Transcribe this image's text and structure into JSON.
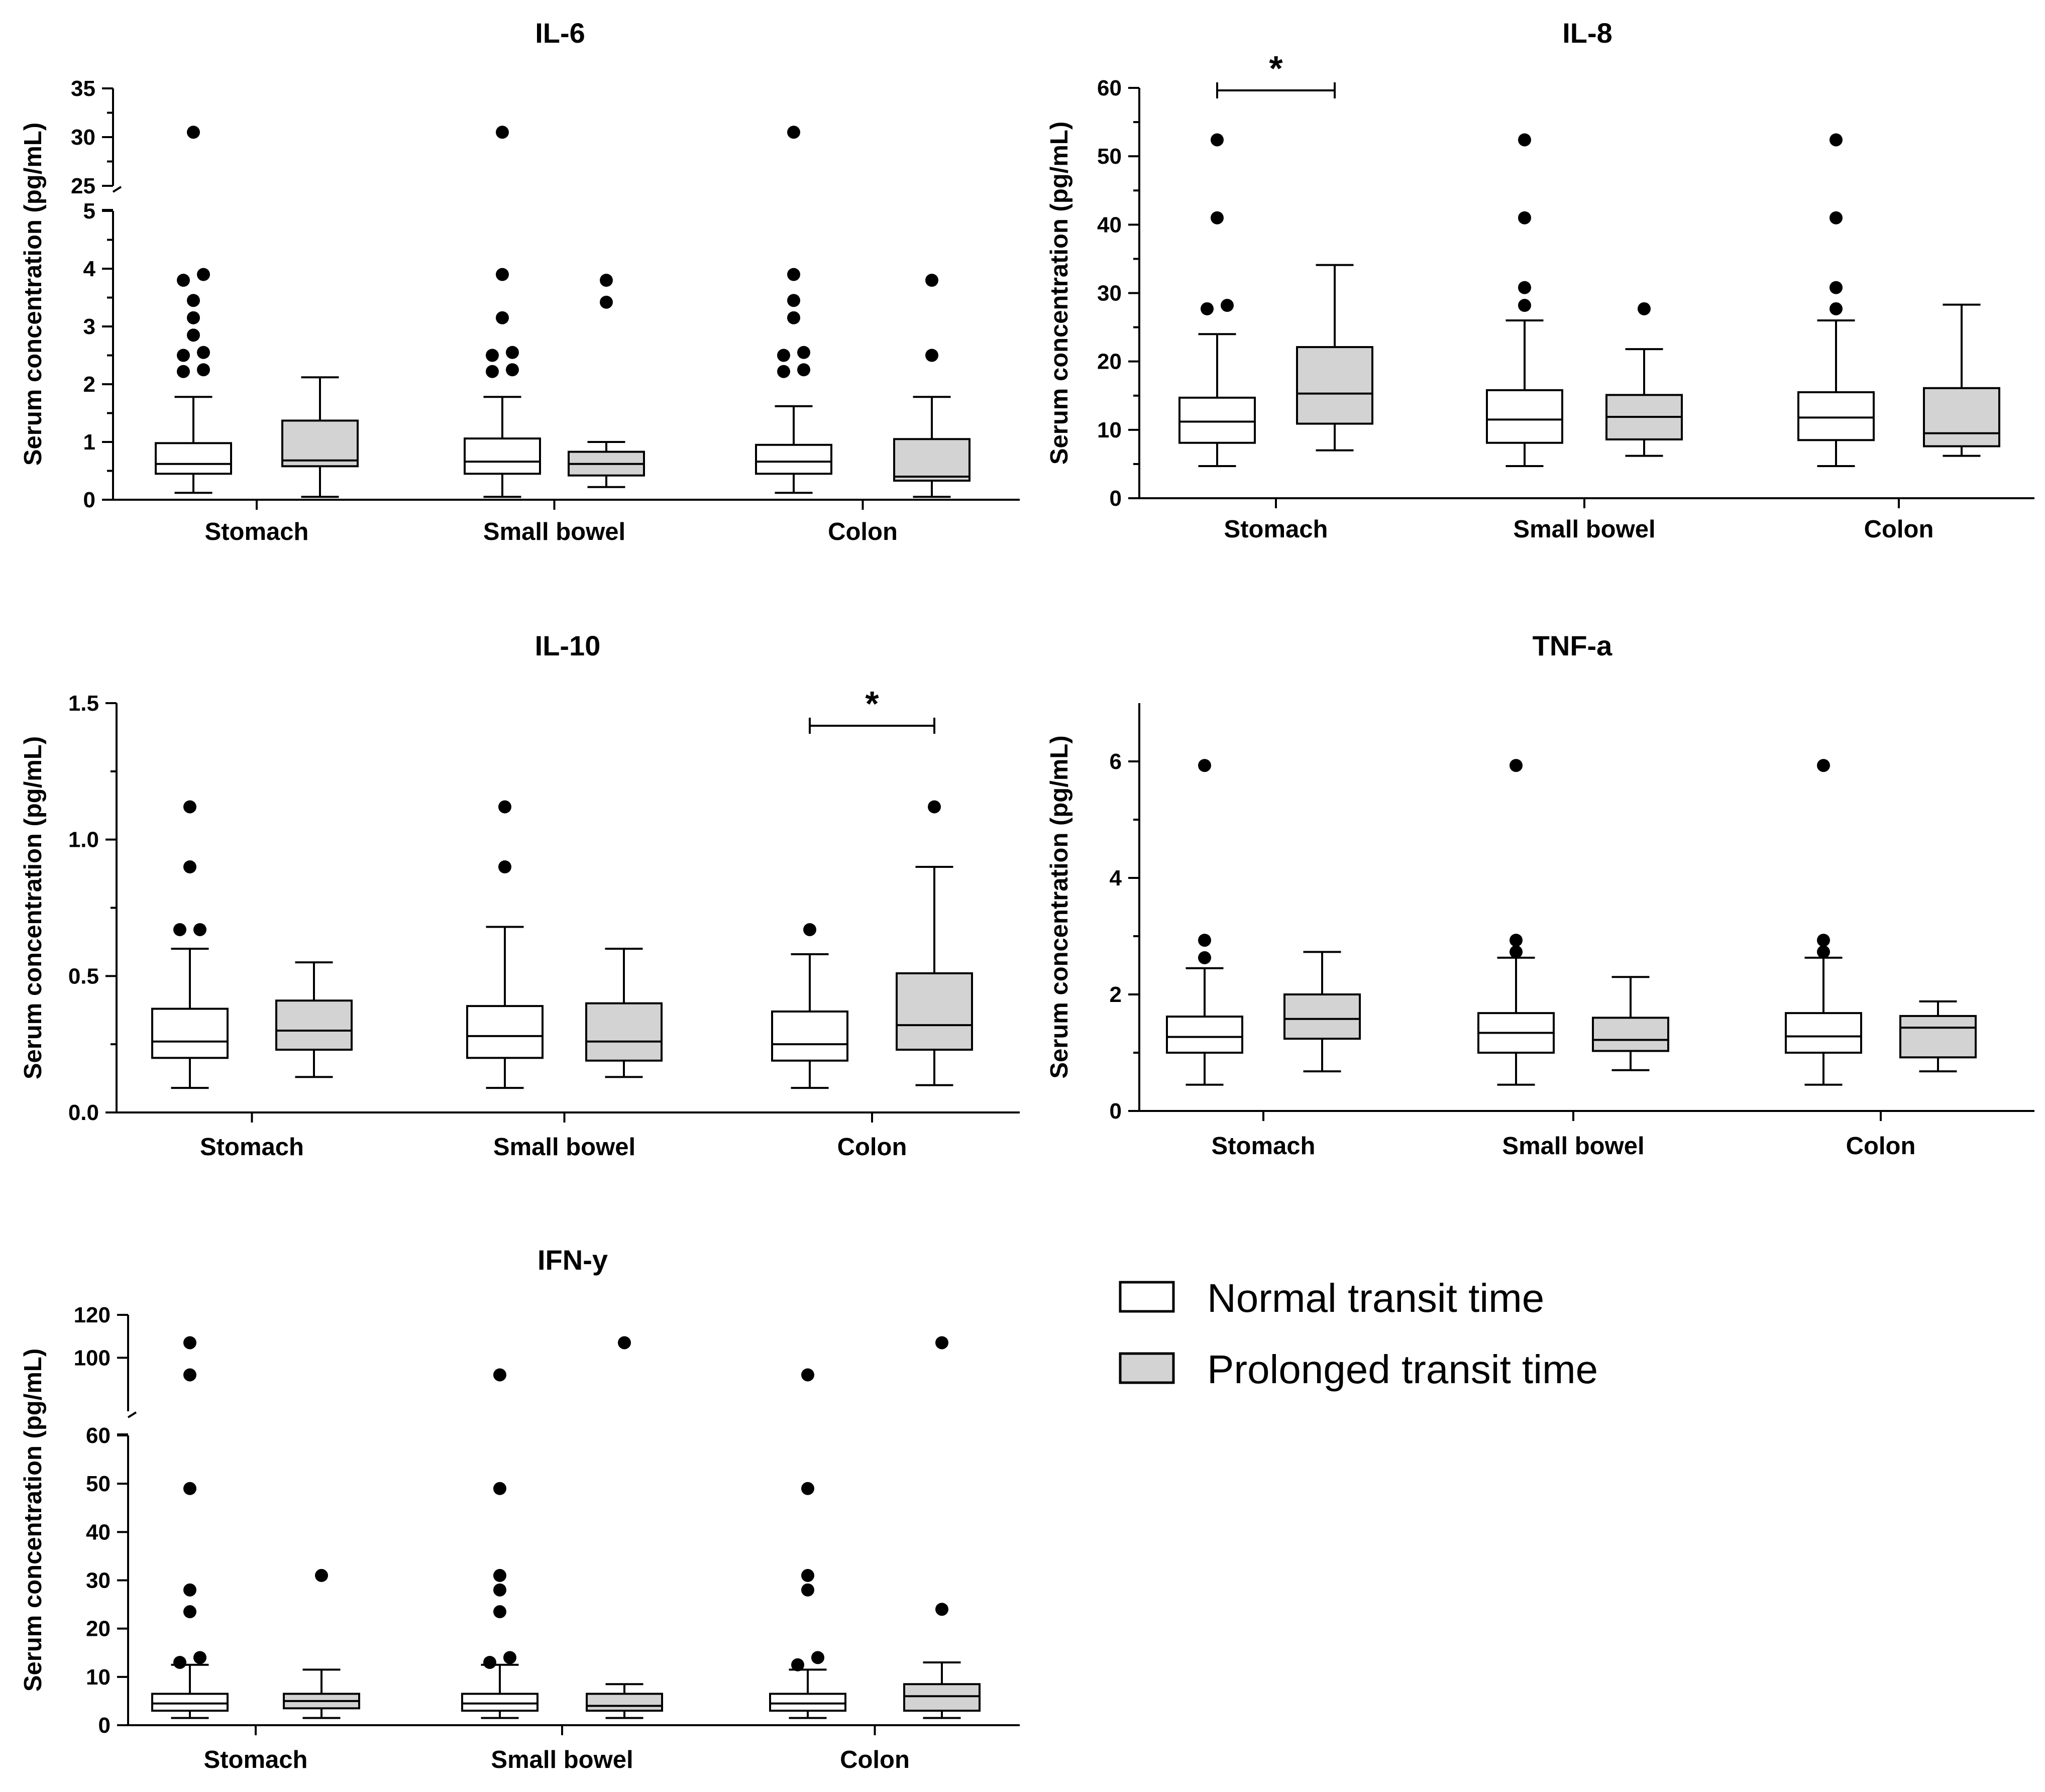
{
  "colors": {
    "normal_fill": "#ffffff",
    "prolonged_fill": "#d3d3d3",
    "stroke": "#000000",
    "outlier": "#000000"
  },
  "legend": {
    "items": [
      {
        "label": "Normal transit time",
        "fill": "#ffffff"
      },
      {
        "label": "Prolonged transit time",
        "fill": "#d3d3d3"
      }
    ]
  },
  "chart_data": [
    {
      "type": "box",
      "title": "IL-6",
      "ylabel": "Serum concentration (pg/mL)",
      "categories": [
        "Stomach",
        "Small bowel",
        "Colon"
      ],
      "axis_break": {
        "lower": [
          0,
          5
        ],
        "upper": [
          25,
          35
        ]
      },
      "yticks_lower": [
        "0",
        "1",
        "2",
        "3",
        "4",
        "5"
      ],
      "yticks_upper": [
        "25",
        "30",
        "35"
      ],
      "series": [
        {
          "name": "Normal transit time",
          "boxes": [
            {
              "min": 0.12,
              "q1": 0.45,
              "median": 0.62,
              "q3": 0.98,
              "max": 1.78,
              "outliers": [
                2.22,
                2.25,
                2.5,
                2.55,
                2.85,
                3.15,
                3.45,
                3.8,
                3.9,
                30.5
              ]
            },
            {
              "min": 0.05,
              "q1": 0.45,
              "median": 0.66,
              "q3": 1.06,
              "max": 1.78,
              "outliers": [
                2.22,
                2.25,
                2.5,
                2.55,
                3.15,
                3.9,
                30.5
              ]
            },
            {
              "min": 0.12,
              "q1": 0.45,
              "median": 0.66,
              "q3": 0.95,
              "max": 1.62,
              "outliers": [
                2.22,
                2.25,
                2.5,
                2.55,
                3.15,
                3.45,
                3.9,
                30.5
              ]
            }
          ]
        },
        {
          "name": "Prolonged transit time",
          "boxes": [
            {
              "min": 0.05,
              "q1": 0.58,
              "median": 0.68,
              "q3": 1.37,
              "max": 2.12,
              "outliers": []
            },
            {
              "min": 0.22,
              "q1": 0.42,
              "median": 0.62,
              "q3": 0.83,
              "max": 1.0,
              "outliers": [
                3.42,
                3.8
              ]
            },
            {
              "min": 0.05,
              "q1": 0.33,
              "median": 0.4,
              "q3": 1.05,
              "max": 1.78,
              "outliers": [
                2.5,
                3.8
              ]
            }
          ]
        }
      ],
      "significance": []
    },
    {
      "type": "box",
      "title": "IL-8",
      "ylabel": "Serum concentration (pg/mL)",
      "categories": [
        "Stomach",
        "Small bowel",
        "Colon"
      ],
      "ylim": [
        0,
        60
      ],
      "yticks": [
        "0",
        "10",
        "20",
        "30",
        "40",
        "50",
        "60"
      ],
      "series": [
        {
          "name": "Normal transit time",
          "boxes": [
            {
              "min": 4.7,
              "q1": 8.1,
              "median": 11.2,
              "q3": 14.7,
              "max": 24.0,
              "outliers": [
                27.7,
                28.2,
                41.0,
                52.4
              ]
            },
            {
              "min": 4.7,
              "q1": 8.1,
              "median": 11.5,
              "q3": 15.8,
              "max": 26.0,
              "outliers": [
                28.2,
                30.8,
                41.0,
                52.4
              ]
            },
            {
              "min": 4.7,
              "q1": 8.5,
              "median": 11.8,
              "q3": 15.5,
              "max": 26.0,
              "outliers": [
                27.7,
                30.8,
                41.0,
                52.4
              ]
            }
          ]
        },
        {
          "name": "Prolonged transit time",
          "boxes": [
            {
              "min": 7.0,
              "q1": 10.9,
              "median": 15.3,
              "q3": 22.1,
              "max": 34.1,
              "outliers": []
            },
            {
              "min": 6.2,
              "q1": 8.6,
              "median": 11.9,
              "q3": 15.1,
              "max": 21.8,
              "outliers": [
                27.7
              ]
            },
            {
              "min": 6.2,
              "q1": 7.6,
              "median": 9.5,
              "q3": 16.1,
              "max": 28.3,
              "outliers": []
            }
          ]
        }
      ],
      "significance": [
        {
          "category": "Stomach",
          "label": "*"
        }
      ]
    },
    {
      "type": "box",
      "title": "IL-10",
      "ylabel": "Serum concentration (pg/mL)",
      "categories": [
        "Stomach",
        "Small bowel",
        "Colon"
      ],
      "ylim": [
        0,
        1.5
      ],
      "yticks": [
        "0.0",
        "0.5",
        "1.0",
        "1.5"
      ],
      "series": [
        {
          "name": "Normal transit time",
          "boxes": [
            {
              "min": 0.09,
              "q1": 0.2,
              "median": 0.26,
              "q3": 0.38,
              "max": 0.6,
              "outliers": [
                0.67,
                0.67,
                0.9,
                1.12
              ]
            },
            {
              "min": 0.09,
              "q1": 0.2,
              "median": 0.28,
              "q3": 0.39,
              "max": 0.68,
              "outliers": [
                0.9,
                1.12
              ]
            },
            {
              "min": 0.09,
              "q1": 0.19,
              "median": 0.25,
              "q3": 0.37,
              "max": 0.58,
              "outliers": [
                0.67
              ]
            }
          ]
        },
        {
          "name": "Prolonged transit time",
          "boxes": [
            {
              "min": 0.13,
              "q1": 0.23,
              "median": 0.3,
              "q3": 0.41,
              "max": 0.55,
              "outliers": []
            },
            {
              "min": 0.13,
              "q1": 0.19,
              "median": 0.26,
              "q3": 0.4,
              "max": 0.6,
              "outliers": []
            },
            {
              "min": 0.1,
              "q1": 0.23,
              "median": 0.32,
              "q3": 0.51,
              "max": 0.9,
              "outliers": [
                1.12
              ]
            }
          ]
        }
      ],
      "significance": [
        {
          "category": "Colon",
          "label": "*"
        }
      ]
    },
    {
      "type": "box",
      "title": "TNF-a",
      "ylabel": "Serum concentration (pg/mL)",
      "categories": [
        "Stomach",
        "Small bowel",
        "Colon"
      ],
      "ylim": [
        0,
        7
      ],
      "yticks": [
        "0",
        "2",
        "4",
        "6"
      ],
      "series": [
        {
          "name": "Normal transit time",
          "boxes": [
            {
              "min": 0.45,
              "q1": 1.0,
              "median": 1.27,
              "q3": 1.62,
              "max": 2.45,
              "outliers": [
                2.63,
                2.93,
                5.93
              ]
            },
            {
              "min": 0.45,
              "q1": 1.0,
              "median": 1.34,
              "q3": 1.68,
              "max": 2.63,
              "outliers": [
                2.73,
                2.93,
                5.93
              ]
            },
            {
              "min": 0.45,
              "q1": 1.0,
              "median": 1.28,
              "q3": 1.68,
              "max": 2.63,
              "outliers": [
                2.73,
                2.93,
                5.93
              ]
            }
          ]
        },
        {
          "name": "Prolonged transit time",
          "boxes": [
            {
              "min": 0.68,
              "q1": 1.24,
              "median": 1.58,
              "q3": 2.0,
              "max": 2.73,
              "outliers": []
            },
            {
              "min": 0.7,
              "q1": 1.03,
              "median": 1.22,
              "q3": 1.6,
              "max": 2.3,
              "outliers": []
            },
            {
              "min": 0.68,
              "q1": 0.92,
              "median": 1.43,
              "q3": 1.63,
              "max": 1.88,
              "outliers": []
            }
          ]
        }
      ],
      "significance": []
    },
    {
      "type": "box",
      "title": "IFN-y",
      "ylabel": "Serum concentration (pg/mL)",
      "categories": [
        "Stomach",
        "Small bowel",
        "Colon"
      ],
      "axis_break": {
        "lower": [
          0,
          60
        ],
        "upper": [
          75,
          120
        ]
      },
      "yticks_lower": [
        "0",
        "10",
        "20",
        "30",
        "40",
        "50",
        "60"
      ],
      "yticks_upper": [
        "100",
        "120"
      ],
      "series": [
        {
          "name": "Normal transit time",
          "boxes": [
            {
              "min": 1.5,
              "q1": 3.0,
              "median": 4.5,
              "q3": 6.5,
              "max": 12.5,
              "outliers": [
                13.0,
                14.0,
                23.5,
                28.0,
                49.0,
                92.0,
                107.0
              ]
            },
            {
              "min": 1.5,
              "q1": 3.0,
              "median": 4.5,
              "q3": 6.5,
              "max": 12.5,
              "outliers": [
                13.0,
                14.0,
                23.5,
                28.0,
                31.0,
                49.0,
                92.0
              ]
            },
            {
              "min": 1.5,
              "q1": 3.0,
              "median": 4.5,
              "q3": 6.5,
              "max": 11.5,
              "outliers": [
                12.5,
                14.0,
                28.0,
                31.0,
                49.0,
                92.0
              ]
            }
          ]
        },
        {
          "name": "Prolonged transit time",
          "boxes": [
            {
              "min": 1.5,
              "q1": 3.5,
              "median": 5.0,
              "q3": 6.5,
              "max": 11.5,
              "outliers": [
                31.0
              ]
            },
            {
              "min": 1.5,
              "q1": 3.0,
              "median": 4.0,
              "q3": 6.5,
              "max": 8.5,
              "outliers": [
                107.0
              ]
            },
            {
              "min": 1.5,
              "q1": 3.0,
              "median": 6.0,
              "q3": 8.5,
              "max": 13.0,
              "outliers": [
                24.0,
                107.0
              ]
            }
          ]
        }
      ],
      "significance": []
    }
  ]
}
